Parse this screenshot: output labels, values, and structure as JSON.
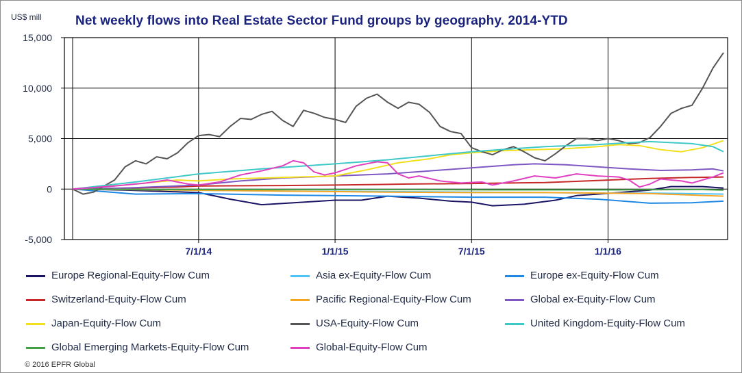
{
  "unit_label": "US$ mill",
  "footer": "© 2016 EPFR Global",
  "chart_data": {
    "type": "line",
    "title": "Net weekly flows into Real Estate Sector Fund groups by geography. 2014-YTD",
    "ylabel": "US$ mill",
    "ylim": [
      -5000,
      15000
    ],
    "yticks": [
      -5000,
      0,
      5000,
      10000,
      15000
    ],
    "ytick_labels": [
      "-5,000",
      "0",
      "5,000",
      "10,000",
      "15,000"
    ],
    "xlim_week_index": [
      0,
      124
    ],
    "xticks": [
      {
        "week": 24,
        "label": "7/1/14"
      },
      {
        "week": 50,
        "label": "1/1/15"
      },
      {
        "week": 76,
        "label": "7/1/15"
      },
      {
        "week": 102,
        "label": "1/1/16"
      }
    ],
    "grid": true,
    "legend_position": "bottom",
    "series": [
      {
        "name": "Europe Regional-Equity-Flow Cum",
        "color": "#1b1464",
        "points": [
          [
            0,
            0
          ],
          [
            10,
            -100
          ],
          [
            24,
            -350
          ],
          [
            30,
            -1000
          ],
          [
            36,
            -1550
          ],
          [
            44,
            -1300
          ],
          [
            50,
            -1100
          ],
          [
            55,
            -1100
          ],
          [
            60,
            -700
          ],
          [
            66,
            -900
          ],
          [
            72,
            -1200
          ],
          [
            76,
            -1300
          ],
          [
            80,
            -1650
          ],
          [
            86,
            -1500
          ],
          [
            92,
            -1100
          ],
          [
            96,
            -650
          ],
          [
            100,
            -500
          ],
          [
            104,
            -350
          ],
          [
            110,
            -100
          ],
          [
            114,
            250
          ],
          [
            120,
            250
          ],
          [
            124,
            100
          ]
        ]
      },
      {
        "name": "Asia ex-Equity-Flow Cum",
        "color": "#4fc3f7",
        "points": [
          [
            0,
            0
          ],
          [
            20,
            -100
          ],
          [
            40,
            -200
          ],
          [
            60,
            -250
          ],
          [
            76,
            -300
          ],
          [
            90,
            -350
          ],
          [
            100,
            -400
          ],
          [
            110,
            -400
          ],
          [
            124,
            -500
          ]
        ]
      },
      {
        "name": "Europe ex-Equity-Flow Cum",
        "color": "#1e88e5",
        "points": [
          [
            0,
            0
          ],
          [
            12,
            -500
          ],
          [
            24,
            -450
          ],
          [
            40,
            -600
          ],
          [
            60,
            -700
          ],
          [
            76,
            -800
          ],
          [
            90,
            -800
          ],
          [
            100,
            -1000
          ],
          [
            110,
            -1400
          ],
          [
            118,
            -1350
          ],
          [
            124,
            -1200
          ]
        ]
      },
      {
        "name": "Switzerland-Equity-Flow Cum",
        "color": "#c62828",
        "points": [
          [
            0,
            0
          ],
          [
            20,
            200
          ],
          [
            24,
            300
          ],
          [
            40,
            350
          ],
          [
            50,
            400
          ],
          [
            58,
            450
          ],
          [
            64,
            500
          ],
          [
            76,
            550
          ],
          [
            90,
            650
          ],
          [
            100,
            850
          ],
          [
            110,
            1050
          ],
          [
            118,
            1150
          ],
          [
            124,
            1200
          ]
        ]
      },
      {
        "name": "Pacific Regional-Equity-Flow Cum",
        "color": "#f5a623",
        "points": [
          [
            0,
            0
          ],
          [
            20,
            -100
          ],
          [
            40,
            -200
          ],
          [
            60,
            -300
          ],
          [
            76,
            -350
          ],
          [
            90,
            -350
          ],
          [
            100,
            -400
          ],
          [
            110,
            -450
          ],
          [
            124,
            -700
          ]
        ]
      },
      {
        "name": "Global ex-Equity-Flow Cum",
        "color": "#7e57c2",
        "points": [
          [
            0,
            0
          ],
          [
            10,
            100
          ],
          [
            24,
            400
          ],
          [
            32,
            800
          ],
          [
            40,
            1100
          ],
          [
            50,
            1300
          ],
          [
            60,
            1500
          ],
          [
            68,
            1800
          ],
          [
            76,
            2100
          ],
          [
            84,
            2400
          ],
          [
            88,
            2500
          ],
          [
            94,
            2400
          ],
          [
            100,
            2200
          ],
          [
            106,
            2000
          ],
          [
            112,
            1850
          ],
          [
            118,
            1900
          ],
          [
            122,
            2000
          ],
          [
            124,
            1800
          ]
        ]
      },
      {
        "name": "Japan-Equity-Flow Cum",
        "color": "#f2e01e",
        "points": [
          [
            0,
            0
          ],
          [
            10,
            400
          ],
          [
            20,
            900
          ],
          [
            24,
            800
          ],
          [
            30,
            1000
          ],
          [
            40,
            1150
          ],
          [
            50,
            1300
          ],
          [
            56,
            1900
          ],
          [
            62,
            2600
          ],
          [
            68,
            3000
          ],
          [
            72,
            3400
          ],
          [
            76,
            3600
          ],
          [
            82,
            3800
          ],
          [
            88,
            3900
          ],
          [
            94,
            4000
          ],
          [
            100,
            4200
          ],
          [
            104,
            4400
          ],
          [
            108,
            4300
          ],
          [
            112,
            3900
          ],
          [
            116,
            3700
          ],
          [
            120,
            4100
          ],
          [
            124,
            4800
          ]
        ]
      },
      {
        "name": "USA-Equity-Flow Cum",
        "color": "#545454",
        "points": [
          [
            0,
            0
          ],
          [
            2,
            -500
          ],
          [
            4,
            -300
          ],
          [
            6,
            300
          ],
          [
            8,
            900
          ],
          [
            10,
            2200
          ],
          [
            12,
            2800
          ],
          [
            14,
            2500
          ],
          [
            16,
            3200
          ],
          [
            18,
            3000
          ],
          [
            20,
            3600
          ],
          [
            22,
            4600
          ],
          [
            24,
            5300
          ],
          [
            26,
            5400
          ],
          [
            28,
            5200
          ],
          [
            30,
            6200
          ],
          [
            32,
            7000
          ],
          [
            34,
            6900
          ],
          [
            36,
            7400
          ],
          [
            38,
            7700
          ],
          [
            40,
            6800
          ],
          [
            42,
            6200
          ],
          [
            44,
            7800
          ],
          [
            46,
            7500
          ],
          [
            48,
            7100
          ],
          [
            50,
            6900
          ],
          [
            52,
            6600
          ],
          [
            54,
            8200
          ],
          [
            56,
            9000
          ],
          [
            58,
            9400
          ],
          [
            60,
            8600
          ],
          [
            62,
            8000
          ],
          [
            64,
            8600
          ],
          [
            66,
            8400
          ],
          [
            68,
            7600
          ],
          [
            70,
            6200
          ],
          [
            72,
            5700
          ],
          [
            74,
            5500
          ],
          [
            76,
            4100
          ],
          [
            78,
            3700
          ],
          [
            80,
            3400
          ],
          [
            82,
            3900
          ],
          [
            84,
            4200
          ],
          [
            86,
            3700
          ],
          [
            88,
            3100
          ],
          [
            90,
            2800
          ],
          [
            92,
            3500
          ],
          [
            94,
            4300
          ],
          [
            96,
            5000
          ],
          [
            98,
            5000
          ],
          [
            100,
            4800
          ],
          [
            102,
            5000
          ],
          [
            104,
            4800
          ],
          [
            106,
            4500
          ],
          [
            108,
            4600
          ],
          [
            110,
            5100
          ],
          [
            112,
            6200
          ],
          [
            114,
            7500
          ],
          [
            116,
            8000
          ],
          [
            118,
            8300
          ],
          [
            120,
            10000
          ],
          [
            122,
            12000
          ],
          [
            124,
            13500
          ]
        ]
      },
      {
        "name": "United Kingdom-Equity-Flow Cum",
        "color": "#3fc8c8",
        "points": [
          [
            0,
            0
          ],
          [
            12,
            700
          ],
          [
            24,
            1500
          ],
          [
            36,
            2000
          ],
          [
            50,
            2500
          ],
          [
            60,
            2900
          ],
          [
            70,
            3400
          ],
          [
            76,
            3700
          ],
          [
            84,
            4000
          ],
          [
            90,
            4200
          ],
          [
            100,
            4400
          ],
          [
            106,
            4600
          ],
          [
            110,
            4700
          ],
          [
            114,
            4600
          ],
          [
            118,
            4500
          ],
          [
            122,
            4200
          ],
          [
            124,
            3700
          ]
        ]
      },
      {
        "name": "Global Emerging Markets-Equity-Flow Cum",
        "color": "#43a047",
        "points": [
          [
            0,
            0
          ],
          [
            20,
            -50
          ],
          [
            40,
            -50
          ],
          [
            60,
            -50
          ],
          [
            80,
            -80
          ],
          [
            100,
            -80
          ],
          [
            120,
            -50
          ],
          [
            124,
            -100
          ]
        ]
      },
      {
        "name": "Global-Equity-Flow Cum",
        "color": "#e040c0",
        "points": [
          [
            0,
            0
          ],
          [
            8,
            300
          ],
          [
            14,
            600
          ],
          [
            18,
            900
          ],
          [
            22,
            500
          ],
          [
            24,
            400
          ],
          [
            28,
            700
          ],
          [
            32,
            1400
          ],
          [
            36,
            1800
          ],
          [
            40,
            2300
          ],
          [
            42,
            2800
          ],
          [
            44,
            2600
          ],
          [
            46,
            1700
          ],
          [
            48,
            1400
          ],
          [
            50,
            1600
          ],
          [
            54,
            2300
          ],
          [
            58,
            2700
          ],
          [
            60,
            2600
          ],
          [
            62,
            1500
          ],
          [
            64,
            1100
          ],
          [
            66,
            1300
          ],
          [
            70,
            800
          ],
          [
            74,
            600
          ],
          [
            78,
            700
          ],
          [
            80,
            400
          ],
          [
            84,
            800
          ],
          [
            88,
            1300
          ],
          [
            92,
            1100
          ],
          [
            96,
            1500
          ],
          [
            100,
            1300
          ],
          [
            104,
            1200
          ],
          [
            106,
            900
          ],
          [
            108,
            200
          ],
          [
            110,
            500
          ],
          [
            112,
            1000
          ],
          [
            114,
            900
          ],
          [
            116,
            800
          ],
          [
            118,
            600
          ],
          [
            122,
            1200
          ],
          [
            124,
            1600
          ]
        ]
      }
    ]
  }
}
